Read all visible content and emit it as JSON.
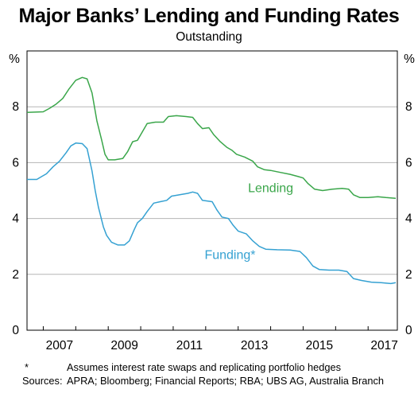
{
  "chart_data": {
    "type": "line",
    "title": "Major Banks’ Lending and Funding Rates",
    "subtitle": "Outstanding",
    "y_unit_left": "%",
    "y_unit_right": "%",
    "xlim": [
      2006.5,
      2017.9
    ],
    "ylim": [
      0,
      10
    ],
    "x_ticks": [
      2007,
      2009,
      2011,
      2013,
      2015,
      2017
    ],
    "y_ticks": [
      0,
      2,
      4,
      6,
      8
    ],
    "grid": true,
    "series": [
      {
        "name": "Lending",
        "color": "#3aa64a",
        "points": [
          [
            2006.5,
            7.8
          ],
          [
            2007.0,
            7.82
          ],
          [
            2007.2,
            7.95
          ],
          [
            2007.4,
            8.1
          ],
          [
            2007.6,
            8.3
          ],
          [
            2007.8,
            8.65
          ],
          [
            2008.0,
            8.95
          ],
          [
            2008.2,
            9.05
          ],
          [
            2008.35,
            9.0
          ],
          [
            2008.5,
            8.5
          ],
          [
            2008.65,
            7.5
          ],
          [
            2008.8,
            6.8
          ],
          [
            2008.9,
            6.3
          ],
          [
            2009.0,
            6.1
          ],
          [
            2009.2,
            6.1
          ],
          [
            2009.45,
            6.15
          ],
          [
            2009.6,
            6.4
          ],
          [
            2009.75,
            6.75
          ],
          [
            2009.9,
            6.8
          ],
          [
            2010.05,
            7.1
          ],
          [
            2010.2,
            7.4
          ],
          [
            2010.45,
            7.45
          ],
          [
            2010.7,
            7.45
          ],
          [
            2010.85,
            7.65
          ],
          [
            2011.1,
            7.68
          ],
          [
            2011.4,
            7.65
          ],
          [
            2011.6,
            7.62
          ],
          [
            2011.75,
            7.4
          ],
          [
            2011.9,
            7.22
          ],
          [
            2012.1,
            7.25
          ],
          [
            2012.25,
            7.0
          ],
          [
            2012.45,
            6.75
          ],
          [
            2012.65,
            6.55
          ],
          [
            2012.8,
            6.45
          ],
          [
            2012.95,
            6.3
          ],
          [
            2013.2,
            6.2
          ],
          [
            2013.45,
            6.05
          ],
          [
            2013.6,
            5.85
          ],
          [
            2013.8,
            5.75
          ],
          [
            2014.0,
            5.72
          ],
          [
            2014.3,
            5.65
          ],
          [
            2014.6,
            5.58
          ],
          [
            2014.85,
            5.5
          ],
          [
            2015.0,
            5.45
          ],
          [
            2015.15,
            5.25
          ],
          [
            2015.35,
            5.05
          ],
          [
            2015.6,
            5.0
          ],
          [
            2015.9,
            5.05
          ],
          [
            2016.2,
            5.08
          ],
          [
            2016.4,
            5.05
          ],
          [
            2016.55,
            4.85
          ],
          [
            2016.75,
            4.75
          ],
          [
            2017.0,
            4.75
          ],
          [
            2017.3,
            4.78
          ],
          [
            2017.55,
            4.75
          ],
          [
            2017.85,
            4.72
          ]
        ]
      },
      {
        "name": "Funding*",
        "color": "#35a1d2",
        "points": [
          [
            2006.5,
            5.4
          ],
          [
            2006.8,
            5.4
          ],
          [
            2006.95,
            5.5
          ],
          [
            2007.1,
            5.6
          ],
          [
            2007.3,
            5.85
          ],
          [
            2007.5,
            6.05
          ],
          [
            2007.7,
            6.35
          ],
          [
            2007.85,
            6.6
          ],
          [
            2008.0,
            6.7
          ],
          [
            2008.2,
            6.68
          ],
          [
            2008.35,
            6.5
          ],
          [
            2008.5,
            5.7
          ],
          [
            2008.6,
            5.0
          ],
          [
            2008.7,
            4.4
          ],
          [
            2008.85,
            3.7
          ],
          [
            2008.95,
            3.4
          ],
          [
            2009.1,
            3.15
          ],
          [
            2009.3,
            3.05
          ],
          [
            2009.5,
            3.05
          ],
          [
            2009.65,
            3.2
          ],
          [
            2009.8,
            3.6
          ],
          [
            2009.9,
            3.85
          ],
          [
            2010.05,
            4.0
          ],
          [
            2010.2,
            4.25
          ],
          [
            2010.4,
            4.55
          ],
          [
            2010.6,
            4.6
          ],
          [
            2010.8,
            4.65
          ],
          [
            2010.95,
            4.8
          ],
          [
            2011.2,
            4.85
          ],
          [
            2011.45,
            4.9
          ],
          [
            2011.6,
            4.95
          ],
          [
            2011.75,
            4.9
          ],
          [
            2011.9,
            4.65
          ],
          [
            2012.2,
            4.6
          ],
          [
            2012.35,
            4.3
          ],
          [
            2012.5,
            4.05
          ],
          [
            2012.7,
            4.0
          ],
          [
            2012.85,
            3.75
          ],
          [
            2013.0,
            3.55
          ],
          [
            2013.25,
            3.45
          ],
          [
            2013.45,
            3.2
          ],
          [
            2013.65,
            3.0
          ],
          [
            2013.85,
            2.9
          ],
          [
            2014.2,
            2.88
          ],
          [
            2014.6,
            2.87
          ],
          [
            2014.9,
            2.82
          ],
          [
            2015.1,
            2.6
          ],
          [
            2015.3,
            2.3
          ],
          [
            2015.5,
            2.17
          ],
          [
            2015.8,
            2.15
          ],
          [
            2016.1,
            2.15
          ],
          [
            2016.35,
            2.1
          ],
          [
            2016.55,
            1.85
          ],
          [
            2016.8,
            1.78
          ],
          [
            2017.1,
            1.72
          ],
          [
            2017.4,
            1.7
          ],
          [
            2017.7,
            1.67
          ],
          [
            2017.85,
            1.7
          ]
        ]
      }
    ]
  },
  "footnotes": [
    {
      "key": "*",
      "text": "Assumes interest rate swaps and replicating portfolio hedges"
    },
    {
      "key": "Sources:",
      "text": "APRA; Bloomberg; Financial Reports; RBA; UBS AG, Australia Branch"
    }
  ]
}
